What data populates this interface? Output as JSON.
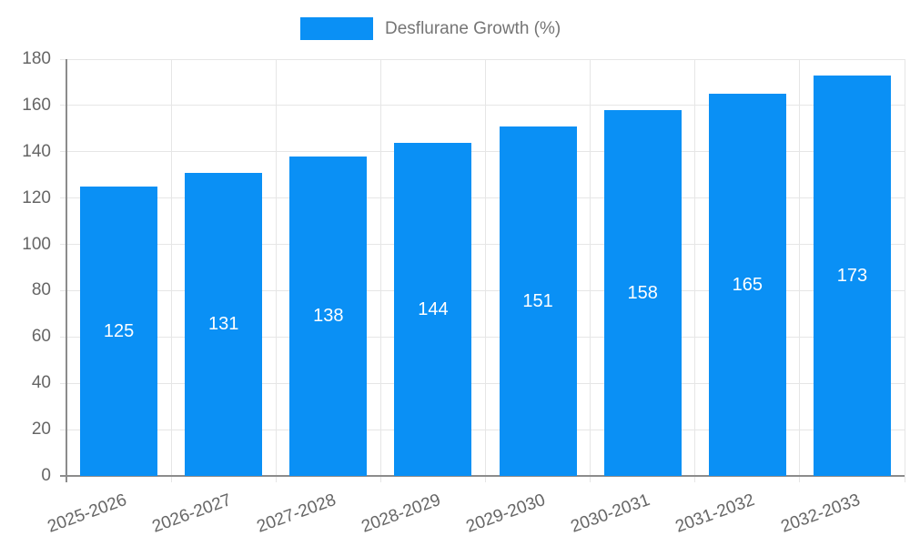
{
  "chart_data": {
    "type": "bar",
    "title": "",
    "series_name": "Desflurane Growth (%)",
    "categories": [
      "2025-2026",
      "2026-2027",
      "2027-2028",
      "2028-2029",
      "2029-2030",
      "2030-2031",
      "2031-2032",
      "2032-2033"
    ],
    "values": [
      125,
      131,
      138,
      144,
      151,
      158,
      165,
      173
    ],
    "y_ticks": [
      0,
      20,
      40,
      60,
      80,
      100,
      120,
      140,
      160,
      180
    ],
    "ylim": [
      0,
      180
    ],
    "xlabel": "",
    "ylabel": "",
    "grid": "horizontal and vertical gridlines on",
    "legend_position": "top-center",
    "colors": {
      "bar": "#0a90f5",
      "bar_label": "#ffffff",
      "axis": "#8c8c8c",
      "grid": "#e6e6e6",
      "tick_text": "#666666",
      "legend_text": "#757575",
      "background": "#ffffff"
    }
  }
}
